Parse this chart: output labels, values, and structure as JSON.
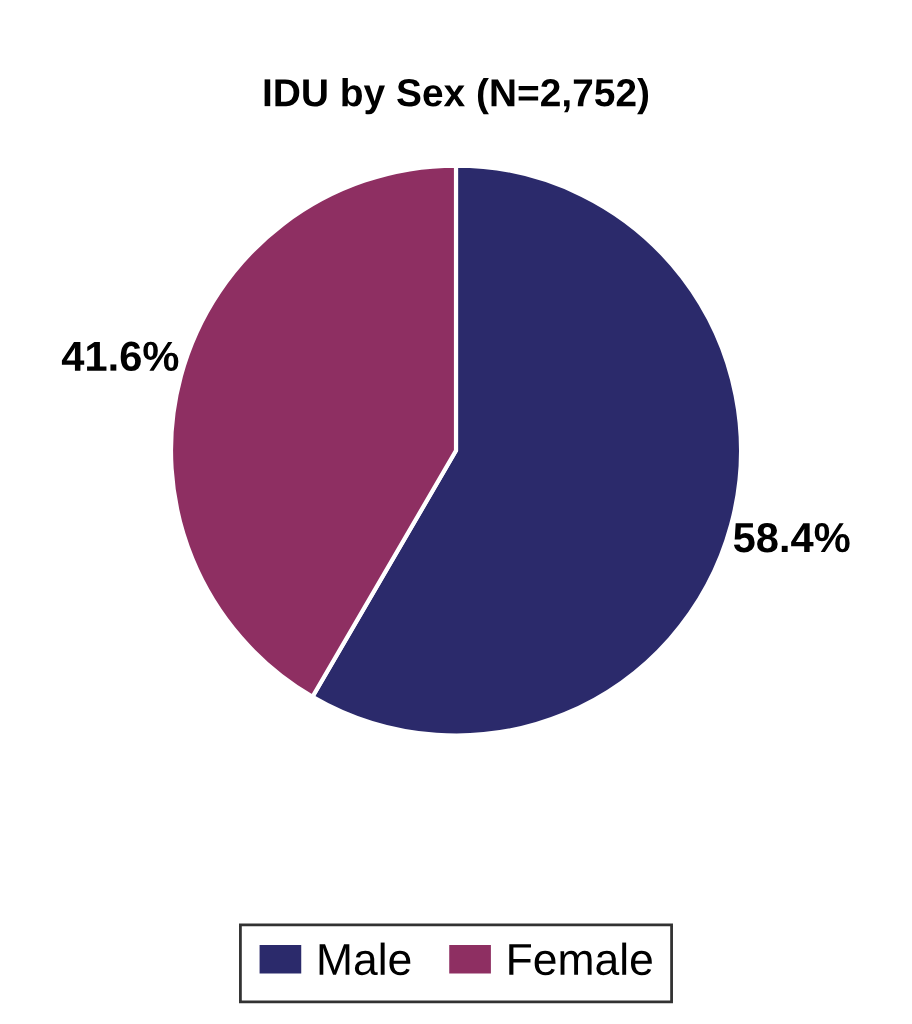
{
  "chart_data": {
    "type": "pie",
    "title": "IDU by Sex (N=2,752)",
    "categories": [
      "Male",
      "Female"
    ],
    "values": [
      58.4,
      41.6
    ],
    "colors": [
      "#2b2a6b",
      "#8e2f62"
    ],
    "value_labels": [
      "58.4%",
      "41.6%"
    ],
    "legend": "bottom"
  }
}
